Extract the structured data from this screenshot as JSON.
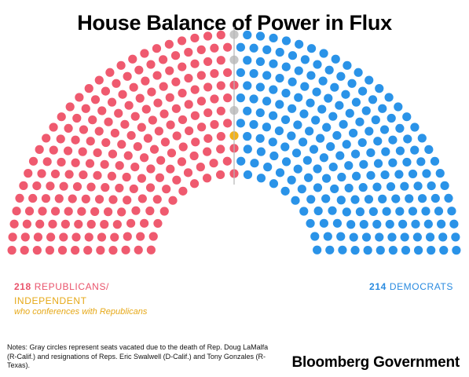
{
  "title": "House Balance of Power in Flux",
  "legend": {
    "republicans_count": "218",
    "republicans_text": "REPUBLICANS/",
    "independent_text": "INDEPENDENT",
    "independent_sub": "who conferences with Republicans",
    "democrats_count": "214",
    "democrats_text": "DEMOCRATS"
  },
  "notes": "Notes: Gray circles represent seats vacated due to the death of Rep. Doug LaMalfa (R-Calif.) and resignations of Reps. Eric Swalwell (D-Calif.) and Tony Gonzales (R-Texas).",
  "brand": "Bloomberg Government",
  "colors": {
    "republican": "#ef5a6f",
    "independent": "#f2b21b",
    "vacant": "#c6c6c6",
    "democrat": "#2a93e8",
    "divider": "#b5b5b5"
  },
  "chart_data": {
    "type": "parliament",
    "title": "House Balance of Power in Flux",
    "total_seats": 435,
    "groups": [
      {
        "name": "REPUBLICANS",
        "seats": 217
      },
      {
        "name": "INDEPENDENT",
        "seats": 1
      },
      {
        "name": "VACANT",
        "seats": 3
      },
      {
        "name": "DEMOCRATS",
        "seats": 214
      }
    ]
  }
}
